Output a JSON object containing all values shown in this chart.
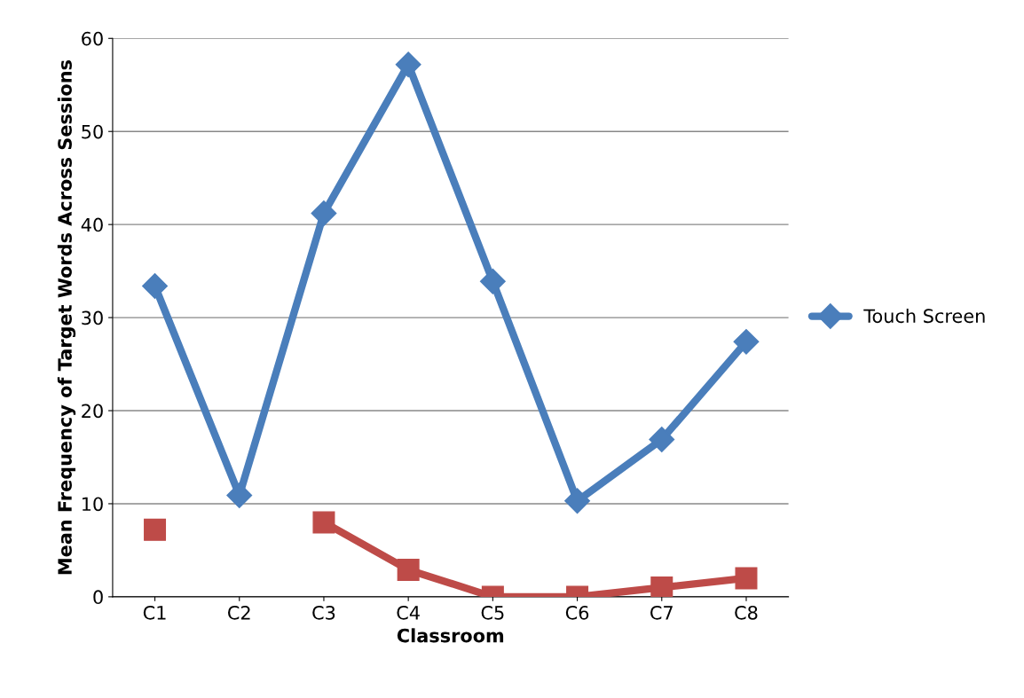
{
  "chart_data": {
    "type": "line",
    "xlabel": "Classroom",
    "ylabel": "Mean Frequency of Target Words Across Sessions",
    "categories": [
      "C1",
      "C2",
      "C3",
      "C4",
      "C5",
      "C6",
      "C7",
      "C8"
    ],
    "series": [
      {
        "name": "Touch Screen",
        "color": "#4a7ebb",
        "marker": "diamond",
        "values": [
          33.4,
          10.9,
          41.2,
          57.2,
          33.9,
          10.3,
          16.9,
          27.4
        ]
      },
      {
        "color": "#be4b48",
        "marker": "square",
        "values": [
          7.2,
          null,
          8.0,
          2.9,
          0,
          0,
          1.0,
          2.0
        ]
      }
    ],
    "ylim": [
      0,
      60
    ],
    "yticks": [
      0,
      10,
      20,
      30,
      40,
      50,
      60
    ],
    "grid": "y",
    "legend": "right",
    "line_style": "solid"
  }
}
